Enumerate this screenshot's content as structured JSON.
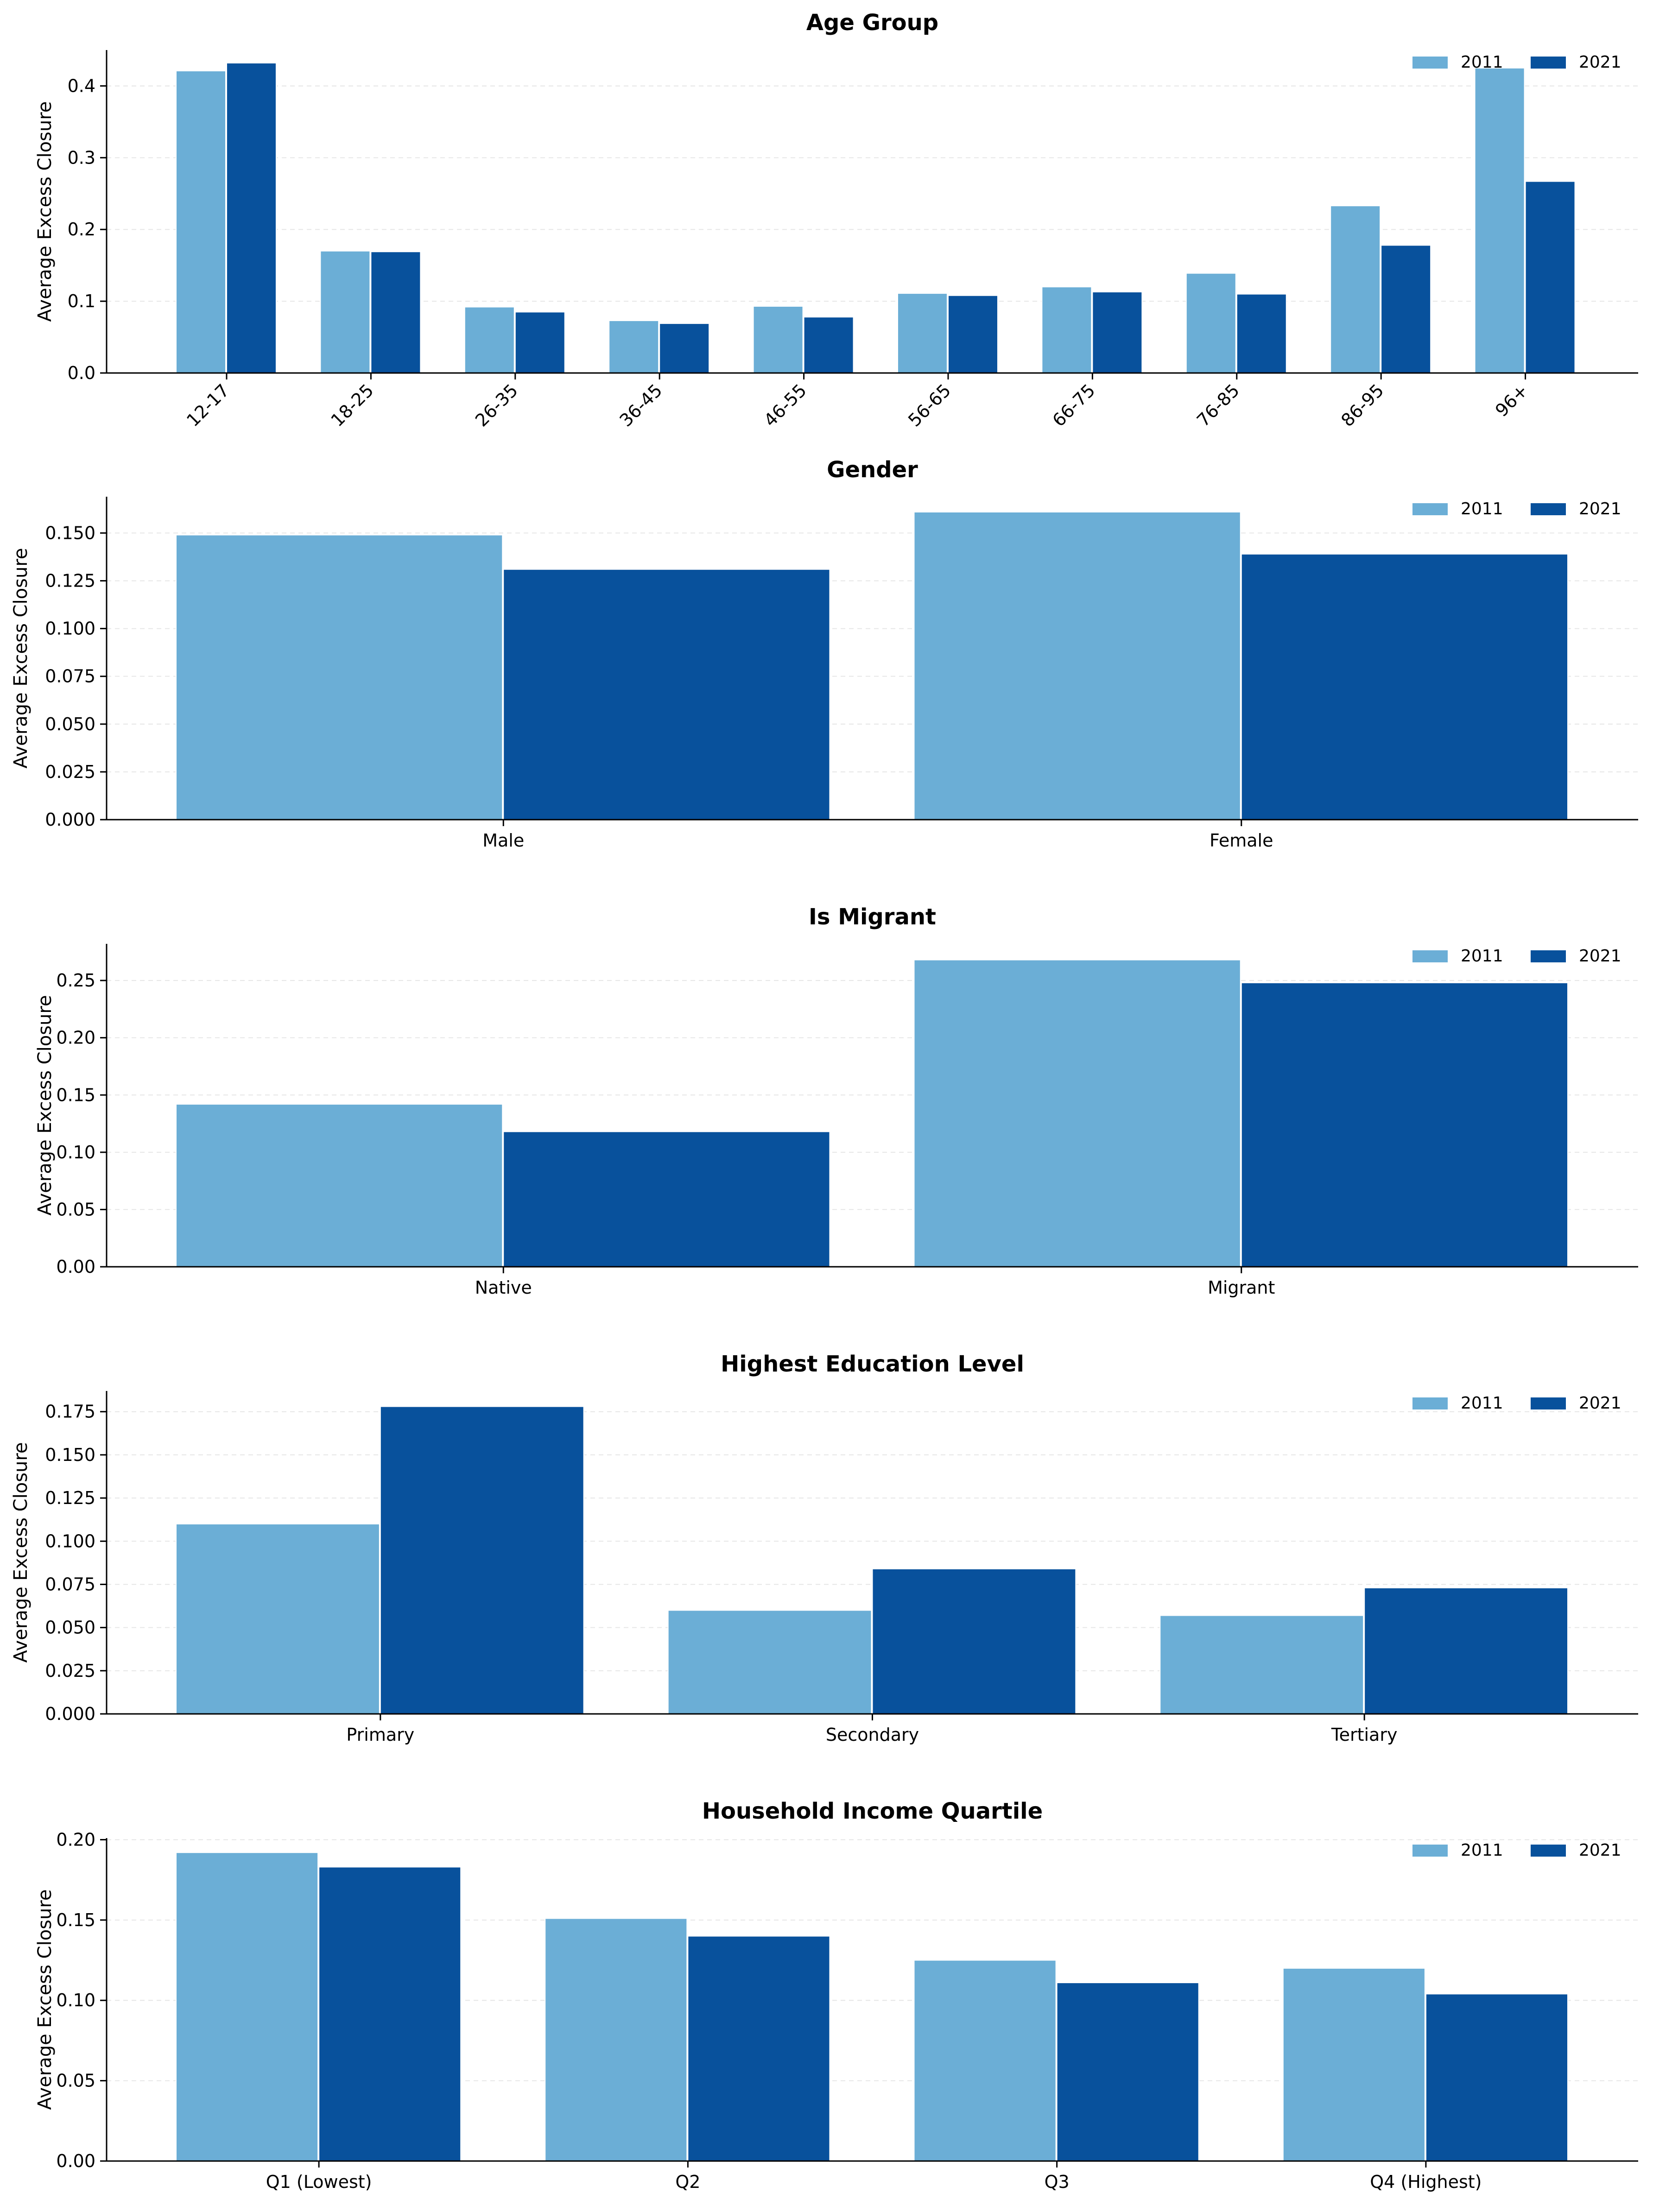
{
  "colors": {
    "series_2011": "#6baed6",
    "series_2021": "#08519c",
    "grid": "#e6e6e6",
    "axis": "#000000"
  },
  "chart_data": [
    {
      "type": "bar",
      "title": "Age Group",
      "ylabel": "Average Excess Closure",
      "xlabel": "",
      "categories": [
        "12-17",
        "18-25",
        "26-35",
        "36-45",
        "46-55",
        "56-65",
        "66-75",
        "76-85",
        "86-95",
        "96+"
      ],
      "series": [
        {
          "name": "2011",
          "values": [
            0.421,
            0.17,
            0.092,
            0.073,
            0.093,
            0.111,
            0.12,
            0.139,
            0.233,
            0.425
          ]
        },
        {
          "name": "2021",
          "values": [
            0.432,
            0.169,
            0.085,
            0.069,
            0.078,
            0.108,
            0.113,
            0.11,
            0.178,
            0.267
          ]
        }
      ],
      "ylim": [
        0,
        0.45
      ],
      "yticks": [
        "0.0",
        "0.1",
        "0.2",
        "0.3",
        "0.4"
      ],
      "ytick_values": [
        0,
        0.1,
        0.2,
        0.3,
        0.4
      ],
      "rotate_xticks": true,
      "grid": "horizontal dashed",
      "legend": "top-right"
    },
    {
      "type": "bar",
      "title": "Gender",
      "ylabel": "Average Excess Closure",
      "xlabel": "",
      "categories": [
        "Male",
        "Female"
      ],
      "series": [
        {
          "name": "2011",
          "values": [
            0.149,
            0.161
          ]
        },
        {
          "name": "2021",
          "values": [
            0.131,
            0.139
          ]
        }
      ],
      "ylim": [
        0,
        0.169
      ],
      "yticks": [
        "0.000",
        "0.025",
        "0.050",
        "0.075",
        "0.100",
        "0.125",
        "0.150"
      ],
      "ytick_values": [
        0,
        0.025,
        0.05,
        0.075,
        0.1,
        0.125,
        0.15
      ],
      "rotate_xticks": false,
      "grid": "horizontal dashed",
      "legend": "top-right"
    },
    {
      "type": "bar",
      "title": "Is Migrant",
      "ylabel": "Average Excess Closure",
      "xlabel": "",
      "categories": [
        "Native",
        "Migrant"
      ],
      "series": [
        {
          "name": "2011",
          "values": [
            0.142,
            0.268
          ]
        },
        {
          "name": "2021",
          "values": [
            0.118,
            0.248
          ]
        }
      ],
      "ylim": [
        0,
        0.282
      ],
      "yticks": [
        "0.00",
        "0.05",
        "0.10",
        "0.15",
        "0.20",
        "0.25"
      ],
      "ytick_values": [
        0,
        0.05,
        0.1,
        0.15,
        0.2,
        0.25
      ],
      "rotate_xticks": false,
      "grid": "horizontal dashed",
      "legend": "top-right"
    },
    {
      "type": "bar",
      "title": "Highest Education Level",
      "ylabel": "Average Excess Closure",
      "xlabel": "",
      "categories": [
        "Primary",
        "Secondary",
        "Tertiary"
      ],
      "series": [
        {
          "name": "2011",
          "values": [
            0.11,
            0.06,
            0.057
          ]
        },
        {
          "name": "2021",
          "values": [
            0.178,
            0.084,
            0.073
          ]
        }
      ],
      "ylim": [
        0,
        0.187
      ],
      "yticks": [
        "0.000",
        "0.025",
        "0.050",
        "0.075",
        "0.100",
        "0.125",
        "0.150",
        "0.175"
      ],
      "ytick_values": [
        0,
        0.025,
        0.05,
        0.075,
        0.1,
        0.125,
        0.15,
        0.175
      ],
      "rotate_xticks": false,
      "grid": "horizontal dashed",
      "legend": "top-right"
    },
    {
      "type": "bar",
      "title": "Household Income Quartile",
      "ylabel": "Average Excess Closure",
      "xlabel": "",
      "categories": [
        "Q1 (Lowest)",
        "Q2",
        "Q3",
        "Q4 (Highest)"
      ],
      "series": [
        {
          "name": "2011",
          "values": [
            0.192,
            0.151,
            0.125,
            0.12
          ]
        },
        {
          "name": "2021",
          "values": [
            0.183,
            0.14,
            0.111,
            0.104
          ]
        }
      ],
      "ylim": [
        0,
        0.201
      ],
      "yticks": [
        "0.00",
        "0.05",
        "0.10",
        "0.15",
        "0.20"
      ],
      "ytick_values": [
        0,
        0.05,
        0.1,
        0.15,
        0.2
      ],
      "rotate_xticks": false,
      "grid": "horizontal dashed",
      "legend": "top-right"
    }
  ]
}
